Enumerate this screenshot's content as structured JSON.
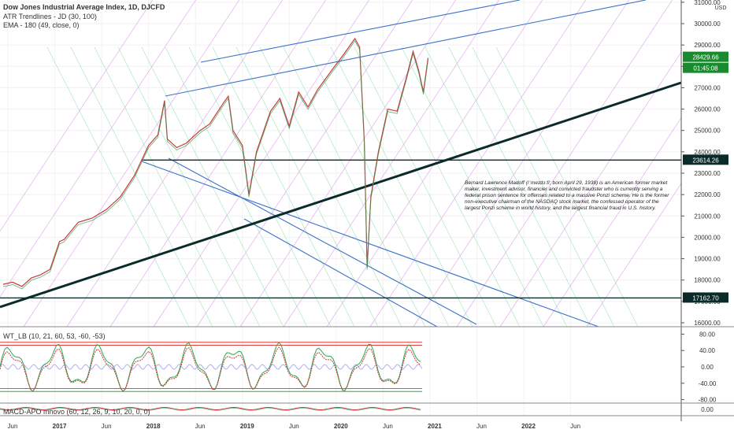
{
  "chart_data": {
    "type": "line",
    "title": "Dow Jones Industrial Average Index, 1D, DJCFD",
    "indicators": {
      "atr": "ATR Trendlines - JD (30, 100)",
      "ema": "EMA - 180 (49, close, 0)",
      "wt": "WT_LB (10, 21, 60, 53, -60, -53)",
      "macd": "MACD-APO mnovo (60, 12, 26, 9, 10, 20, 0, 0)"
    },
    "currency": "USD",
    "price_axis": {
      "min": 16000,
      "max": 31000,
      "ticks": [
        "31000.00",
        "30000.00",
        "29000.00",
        "28000.00",
        "27000.00",
        "26000.00",
        "25000.00",
        "24000.00",
        "23000.00",
        "22000.00",
        "21000.00",
        "20000.00",
        "19000.00",
        "18000.00",
        "17000.00",
        "16000.00"
      ]
    },
    "osc_axis": {
      "min": -90,
      "max": 90,
      "ticks": [
        "80.00",
        "40.00",
        "0.00",
        "-40.00",
        "-80.00"
      ]
    },
    "macd_axis": {
      "ticks": [
        "0.00"
      ]
    },
    "time_axis": [
      "Jun",
      "2017",
      "Jun",
      "2018",
      "Jun",
      "2019",
      "Jun",
      "2020",
      "Jun",
      "2021",
      "Jun",
      "2022",
      "Jun"
    ],
    "last_price": "28429.66",
    "countdown": "01:45:08",
    "levels": [
      "23614.26",
      "17162.70"
    ],
    "annotation": "Bernard Lawrence Madoff (/ˈmeɪdɔːf/; born April 29, 1938) is an American former market maker, investment advisor, financier and convicted fraudster who is currently serving a federal prison sentence for offenses related to a massive Ponzi scheme. He is the former non-executive chairman of the NASDAQ stock market, the confessed operator of the largest Ponzi scheme in world history, and the largest financial fraud in U.S. history.",
    "series": [
      {
        "values": [
          [
            2016.35,
            17800
          ],
          [
            2016.45,
            17900
          ],
          [
            2016.55,
            17700
          ],
          [
            2016.65,
            18100
          ],
          [
            2016.75,
            18250
          ],
          [
            2016.85,
            18500
          ],
          [
            2016.95,
            19800
          ],
          [
            2017.0,
            19900
          ],
          [
            2017.15,
            20700
          ],
          [
            2017.3,
            20900
          ],
          [
            2017.45,
            21300
          ],
          [
            2017.6,
            21900
          ],
          [
            2017.75,
            22900
          ],
          [
            2017.9,
            24300
          ],
          [
            2018.0,
            24800
          ],
          [
            2018.07,
            26400
          ],
          [
            2018.1,
            24600
          ],
          [
            2018.2,
            24200
          ],
          [
            2018.3,
            24400
          ],
          [
            2018.45,
            25000
          ],
          [
            2018.55,
            25300
          ],
          [
            2018.7,
            26300
          ],
          [
            2018.75,
            26600
          ],
          [
            2018.8,
            25000
          ],
          [
            2018.9,
            24300
          ],
          [
            2018.97,
            22000
          ],
          [
            2019.05,
            24000
          ],
          [
            2019.2,
            25900
          ],
          [
            2019.3,
            26500
          ],
          [
            2019.4,
            25200
          ],
          [
            2019.5,
            26800
          ],
          [
            2019.6,
            26100
          ],
          [
            2019.7,
            26900
          ],
          [
            2019.85,
            27800
          ],
          [
            2019.97,
            28500
          ],
          [
            2020.1,
            29300
          ],
          [
            2020.15,
            28900
          ],
          [
            2020.2,
            24500
          ],
          [
            2020.23,
            18600
          ],
          [
            2020.27,
            21900
          ],
          [
            2020.35,
            24000
          ],
          [
            2020.45,
            26000
          ],
          [
            2020.55,
            25900
          ],
          [
            2020.65,
            27500
          ],
          [
            2020.72,
            28700
          ],
          [
            2020.78,
            27800
          ],
          [
            2020.83,
            26800
          ],
          [
            2020.88,
            28400
          ]
        ]
      }
    ]
  }
}
